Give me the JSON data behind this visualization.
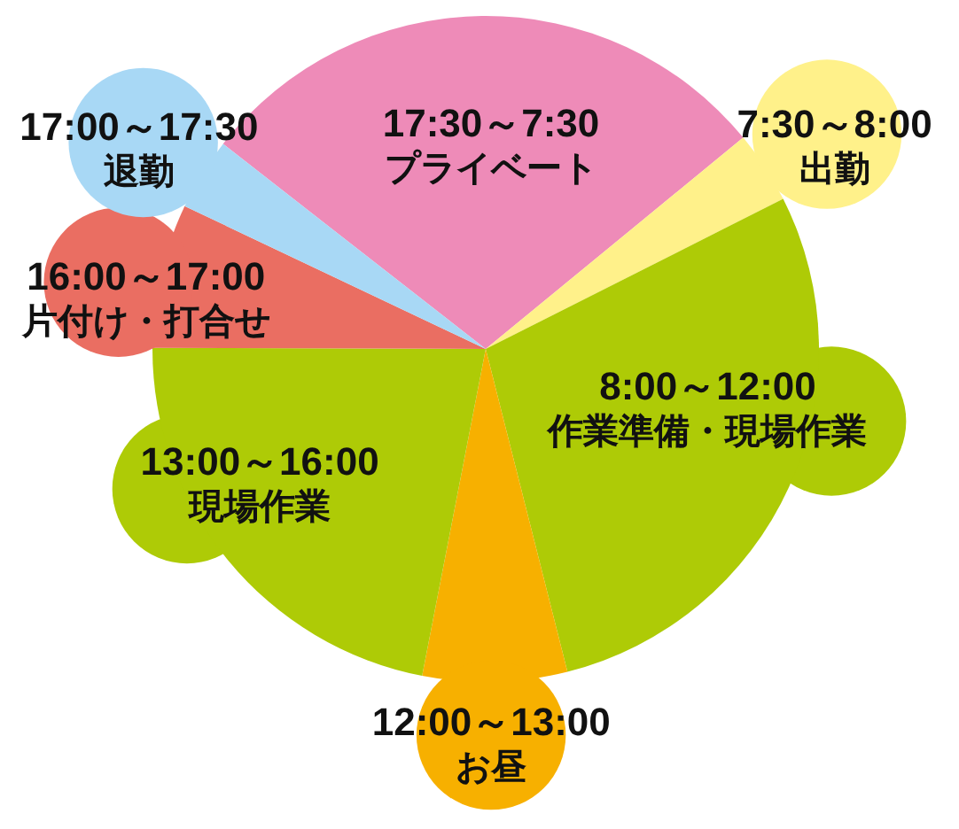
{
  "chart_data": {
    "type": "pie",
    "categories": [
      "17:30～7:30\nプライベート",
      "7:30～8:00\n出勤",
      "8:00～12:00\n作業準備・現場作業",
      "12:00～13:00\nお昼",
      "13:00～16:00\n現場作業",
      "16:00～17:00\n片付け・打合せ",
      "17:00～17:30\n退勤"
    ],
    "values": [
      28.5,
      3.5,
      28.5,
      7,
      22,
      7,
      3.5
    ],
    "colors": [
      "#ee8bb8",
      "#fff18a",
      "#aecb06",
      "#f7b000",
      "#aecb06",
      "#ea6e62",
      "#a8d8f5"
    ]
  }
}
